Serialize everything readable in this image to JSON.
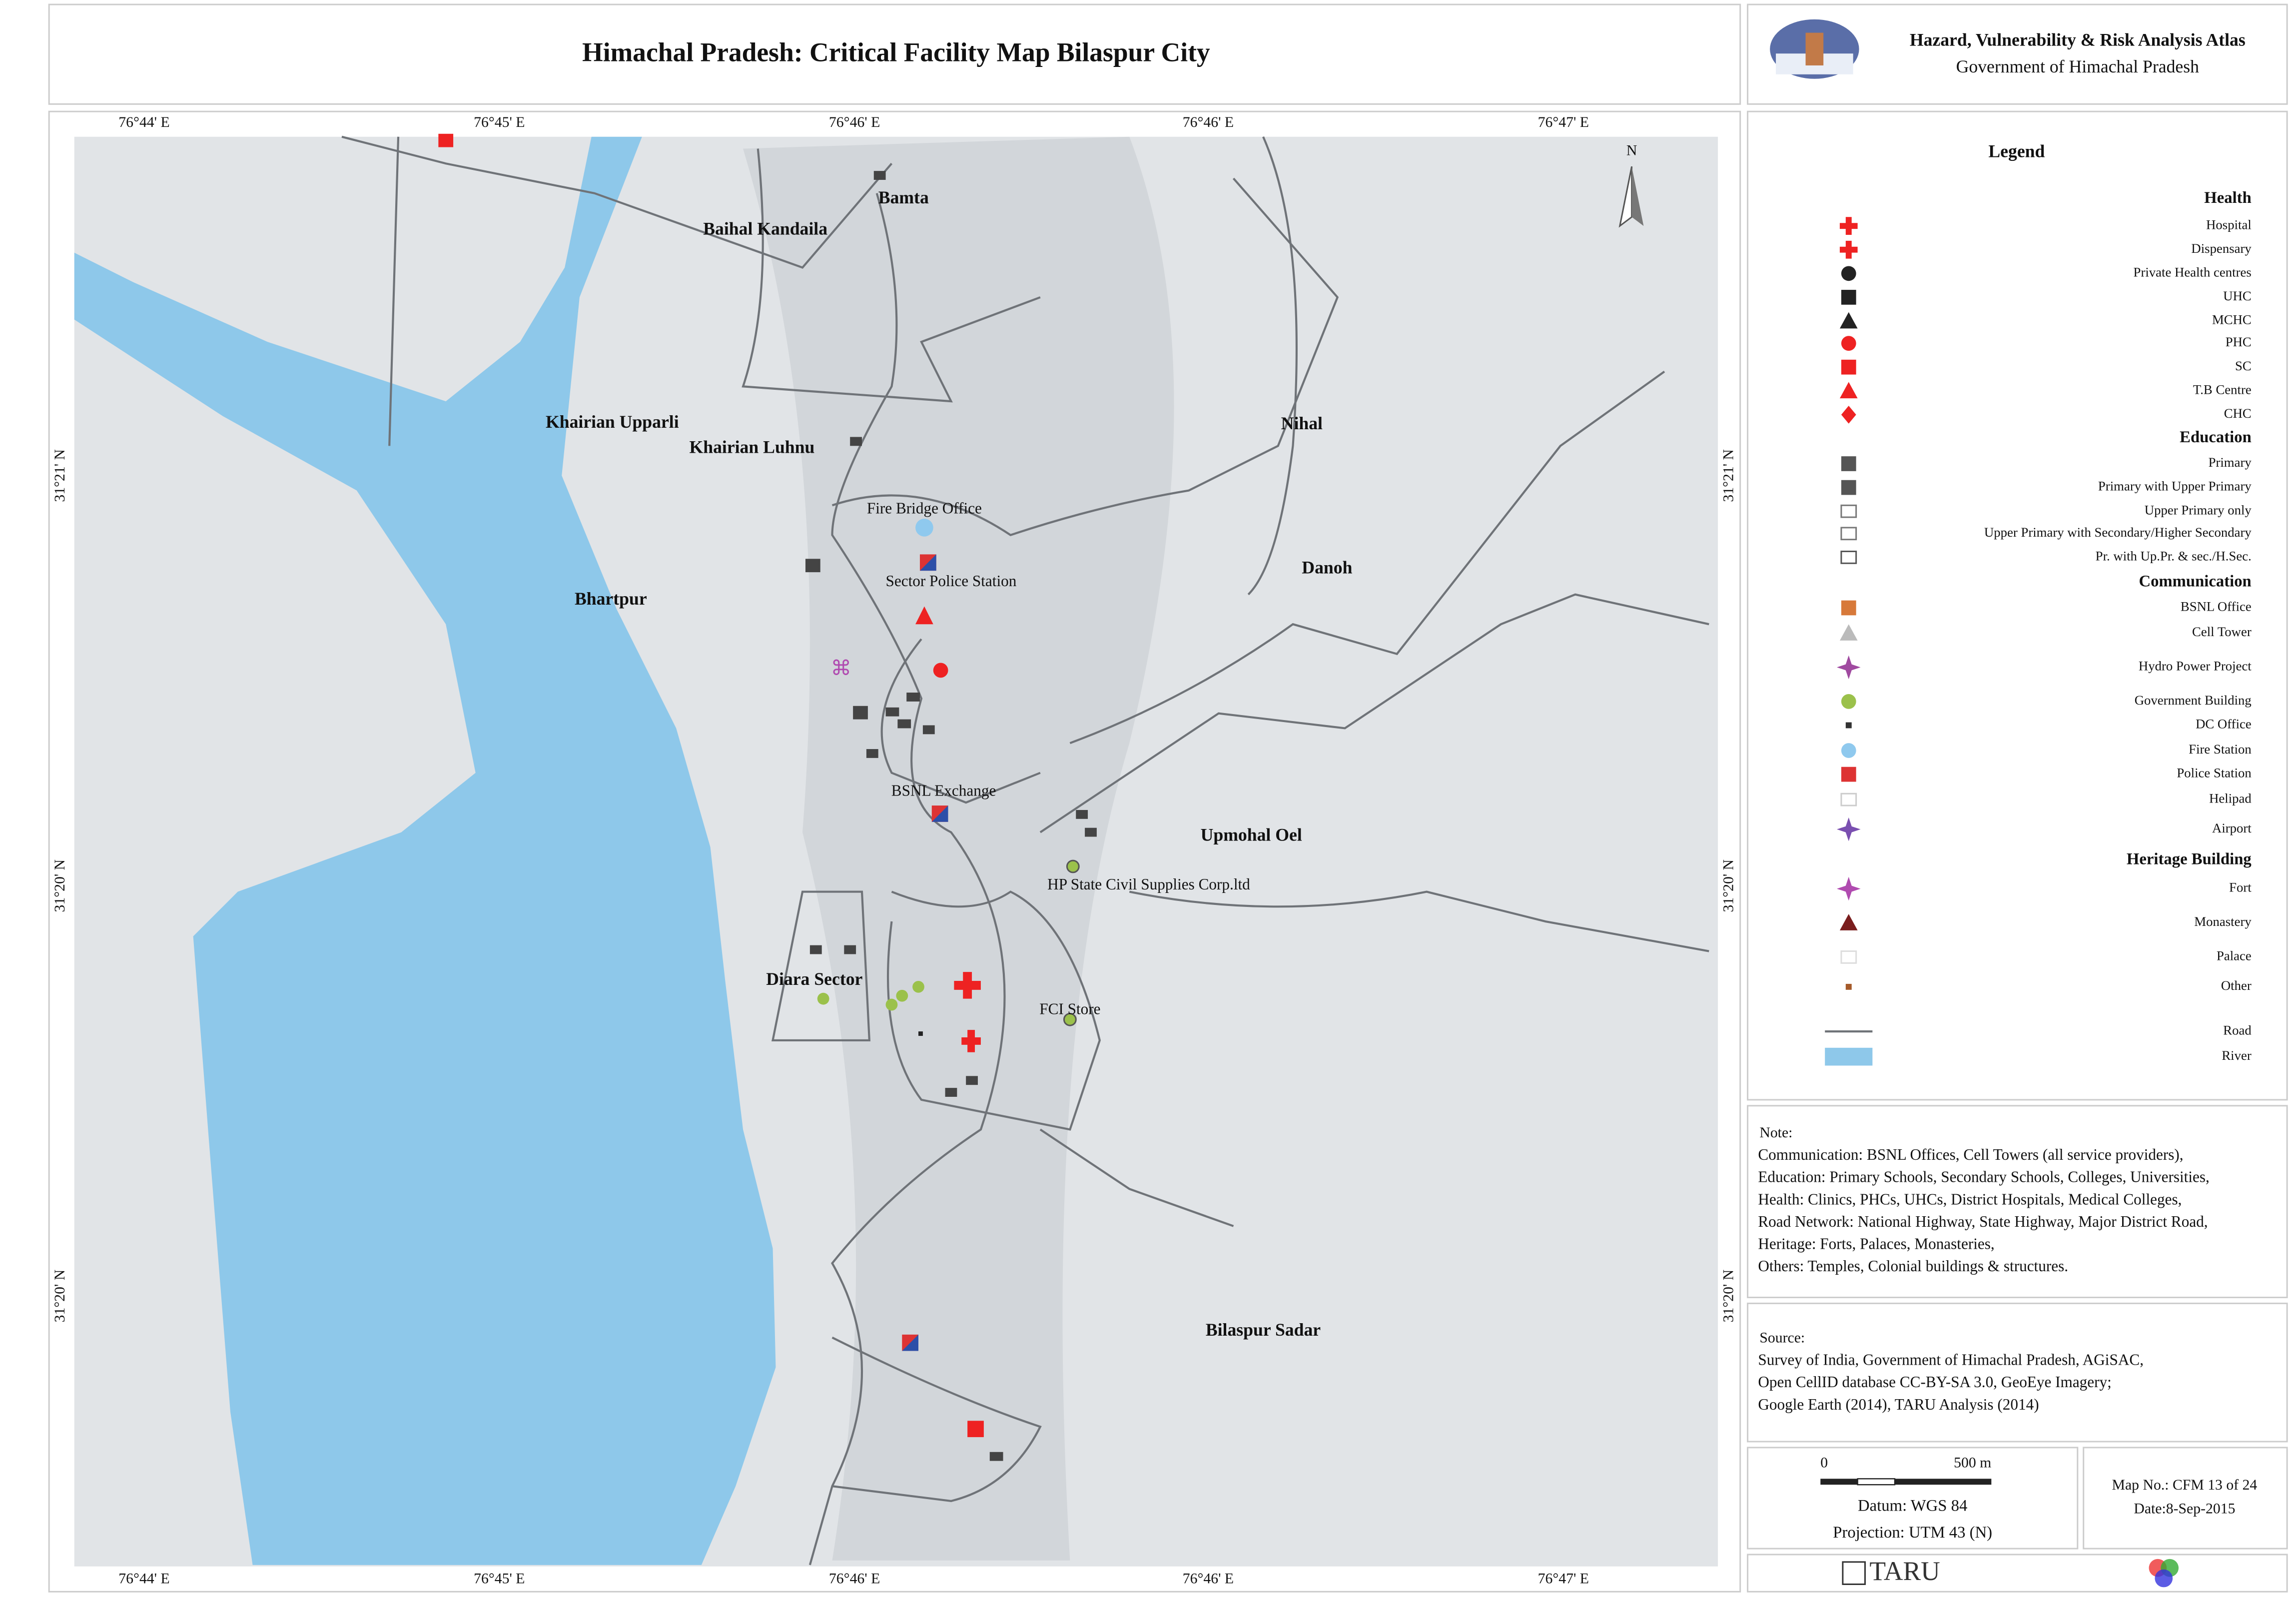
{
  "header": {
    "title": "Himachal Pradesh: Critical Facility Map Bilaspur City",
    "atlas": "Hazard, Vulnerability & Risk Analysis Atlas",
    "government": "Government of Himachal Pradesh"
  },
  "map": {
    "grid_labels": {
      "top": [
        "76°44' E",
        "76°45' E",
        "76°46' E",
        "76°46' E",
        "76°47' E"
      ],
      "bottom": [
        "76°44' E",
        "76°45' E",
        "76°46' E",
        "76°46' E",
        "76°47' E"
      ],
      "left": [
        "31°21' N",
        "31°20' N",
        "31°20' N"
      ],
      "right": [
        "31°21' N",
        "31°20' N",
        "31°20' N"
      ]
    },
    "north": "N",
    "places": [
      "Bamta",
      "Baihal Kandaila",
      "Khairian Upparli",
      "Khairian Luhnu",
      "Nihal",
      "Bhartpur",
      "Danoh",
      "Upmohal Oel",
      "Diara Sector",
      "Bilaspur Sadar"
    ],
    "facilities": [
      "Fire Bridge Office",
      "Sector Police Station",
      "BSNL Exchange",
      "HP State Civil Supplies Corp.ltd",
      "FCI Store"
    ]
  },
  "legend": {
    "title": "Legend",
    "sections": [
      {
        "title": "Health",
        "items": [
          "Hospital",
          "Dispensary",
          "Private Health centres",
          "UHC",
          "MCHC",
          "PHC",
          "SC",
          "T.B Centre",
          "CHC"
        ]
      },
      {
        "title": "Education",
        "items": [
          "Primary",
          "Primary with Upper Primary",
          "Upper Primary only",
          "Upper Primary with Secondary/Higher Secondary",
          "Pr. with Up.Pr. & sec./H.Sec."
        ]
      },
      {
        "title": "Communication",
        "items": [
          "BSNL Office",
          "Cell Tower",
          "Hydro Power Project",
          "Government Building",
          "DC Office",
          "Fire Station",
          "Police Station",
          "Helipad",
          "Airport"
        ]
      },
      {
        "title": "Heritage Building",
        "items": [
          "Fort",
          "Monastery",
          "Palace",
          "Other"
        ]
      }
    ],
    "road": "Road",
    "river": "River"
  },
  "note": {
    "title": "Note:",
    "lines": [
      "Communication: BSNL Offices, Cell Towers (all service providers),",
      "Education:  Primary Schools, Secondary Schools, Colleges, Universities,",
      "Health: Clinics, PHCs, UHCs, District Hospitals, Medical Colleges,",
      "Road Network: National Highway, State Highway, Major District Road,",
      "Heritage: Forts, Palaces, Monasteries,",
      "Others: Temples, Colonial buildings & structures."
    ]
  },
  "source": {
    "title": "Source:",
    "lines": [
      "Survey of India, Government of Himachal Pradesh, AGiSAC,",
      "Open CellID database CC-BY-SA 3.0, GeoEye Imagery;",
      "Google Earth (2014), TARU Analysis (2014)"
    ]
  },
  "scale": {
    "labels": [
      "0",
      "500 m"
    ],
    "datum": "Datum: WGS 84",
    "projection": "Projection: UTM 43 (N)"
  },
  "map_info": {
    "number": "Map No.: CFM 13 of 24",
    "date": "Date:8-Sep-2015"
  },
  "footer": {
    "logo": "TARU"
  }
}
